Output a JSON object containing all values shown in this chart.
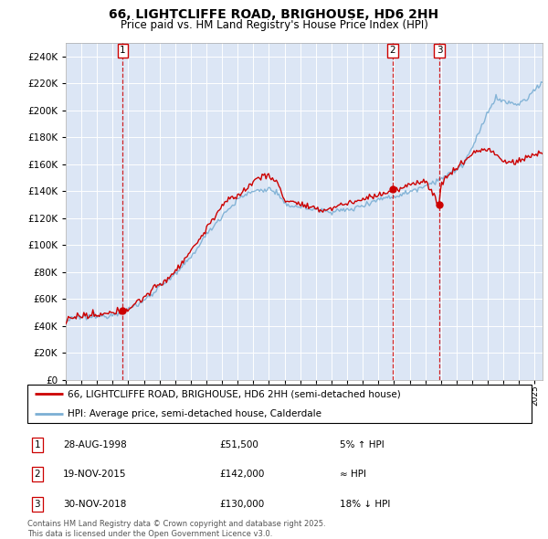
{
  "title": "66, LIGHTCLIFFE ROAD, BRIGHOUSE, HD6 2HH",
  "subtitle": "Price paid vs. HM Land Registry's House Price Index (HPI)",
  "ylim": [
    0,
    250000
  ],
  "yticks": [
    0,
    20000,
    40000,
    60000,
    80000,
    100000,
    120000,
    140000,
    160000,
    180000,
    200000,
    220000,
    240000
  ],
  "bg_color": "#dce6f5",
  "line1_color": "#cc0000",
  "line2_color": "#7bafd4",
  "dashed_color": "#cc0000",
  "legend_line1": "66, LIGHTCLIFFE ROAD, BRIGHOUSE, HD6 2HH (semi-detached house)",
  "legend_line2": "HPI: Average price, semi-detached house, Calderdale",
  "transaction1_date": "28-AUG-1998",
  "transaction1_price": "£51,500",
  "transaction1_hpi": "5% ↑ HPI",
  "transaction1_year": 1998.65,
  "transaction1_value": 51500,
  "transaction2_date": "19-NOV-2015",
  "transaction2_price": "£142,000",
  "transaction2_hpi": "≈ HPI",
  "transaction2_year": 2015.9,
  "transaction2_value": 142000,
  "transaction3_date": "30-NOV-2018",
  "transaction3_price": "£130,000",
  "transaction3_hpi": "18% ↓ HPI",
  "transaction3_year": 2018.92,
  "transaction3_value": 130000,
  "footer": "Contains HM Land Registry data © Crown copyright and database right 2025.\nThis data is licensed under the Open Government Licence v3.0."
}
